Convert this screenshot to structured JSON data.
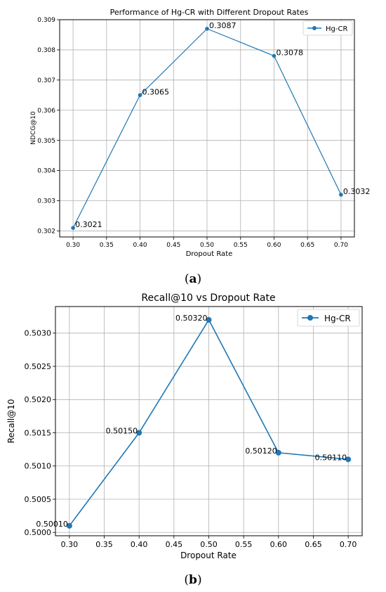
{
  "colors": {
    "series": "#1f77b4",
    "grid": "#b0b0b0",
    "axis": "#000000",
    "background": "#ffffff"
  },
  "chart_data": [
    {
      "type": "line",
      "title": "Performance of Hg-CR with Different Dropout Rates",
      "xlabel": "Dropout Rate",
      "ylabel": "NDCG@10",
      "x": [
        0.3,
        0.4,
        0.5,
        0.6,
        0.7
      ],
      "series": [
        {
          "name": "Hg-CR",
          "values": [
            0.3021,
            0.3065,
            0.3087,
            0.3078,
            0.3032
          ]
        }
      ],
      "data_labels": [
        "0.3021",
        "0.3065",
        "0.3087",
        "0.3078",
        "0.3032"
      ],
      "xticks": [
        "0.30",
        "0.35",
        "0.40",
        "0.45",
        "0.50",
        "0.55",
        "0.60",
        "0.65",
        "0.70"
      ],
      "yticks": [
        "0.302",
        "0.303",
        "0.304",
        "0.305",
        "0.306",
        "0.307",
        "0.308",
        "0.309"
      ],
      "xlim": [
        0.28,
        0.72
      ],
      "ylim": [
        0.3018,
        0.309
      ],
      "grid": true,
      "legend": "top-right",
      "caption": [
        "(",
        "a",
        ")"
      ]
    },
    {
      "type": "line",
      "title": "Recall@10 vs Dropout Rate",
      "xlabel": "Dropout Rate",
      "ylabel": "Recall@10",
      "x": [
        0.3,
        0.4,
        0.5,
        0.6,
        0.7
      ],
      "series": [
        {
          "name": "Hg-CR",
          "values": [
            0.5001,
            0.5015,
            0.5032,
            0.5012,
            0.5011
          ]
        }
      ],
      "data_labels": [
        "0.50010",
        "0.50150",
        "0.50320",
        "0.50120",
        "0.50110"
      ],
      "xticks": [
        "0.30",
        "0.35",
        "0.40",
        "0.45",
        "0.50",
        "0.55",
        "0.60",
        "0.65",
        "0.70"
      ],
      "yticks": [
        "0.5000",
        "0.5005",
        "0.5010",
        "0.5015",
        "0.5020",
        "0.5025",
        "0.5030"
      ],
      "xlim": [
        0.28,
        0.72
      ],
      "ylim": [
        0.49995,
        0.5034
      ],
      "grid": true,
      "legend": "top-right",
      "caption": [
        "(",
        "b",
        ")"
      ]
    }
  ]
}
